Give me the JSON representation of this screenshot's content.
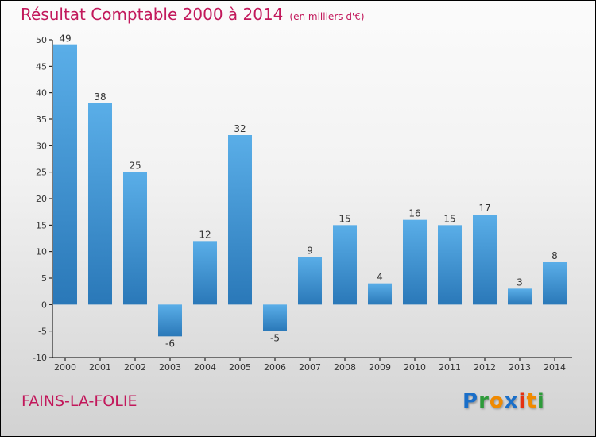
{
  "chart_data": {
    "type": "bar",
    "title": "Résultat Comptable 2000 à 2014",
    "unit": "(en milliers d'€)",
    "categories": [
      "2000",
      "2001",
      "2002",
      "2003",
      "2004",
      "2005",
      "2006",
      "2007",
      "2008",
      "2009",
      "2010",
      "2011",
      "2012",
      "2013",
      "2014"
    ],
    "values": [
      49,
      38,
      25,
      -6,
      12,
      32,
      -5,
      9,
      15,
      4,
      16,
      15,
      17,
      3,
      8
    ],
    "ylim": [
      -10,
      50
    ],
    "yticks": [
      -10,
      -5,
      0,
      5,
      10,
      15,
      20,
      25,
      30,
      35,
      40,
      45,
      50
    ],
    "xlabel": "",
    "ylabel": "",
    "bar_color_top": "#5aaee8",
    "bar_color_bottom": "#2a78b8"
  },
  "commune": "FAINS-LA-FOLIE",
  "logo": {
    "letters": [
      "P",
      "r",
      "o",
      "x",
      "i",
      "t",
      "i"
    ],
    "colors": [
      "#1a6fc9",
      "#2e9b3a",
      "#f08a00",
      "#1a6fc9",
      "#e53010",
      "#f08a00",
      "#2e9b3a"
    ]
  }
}
